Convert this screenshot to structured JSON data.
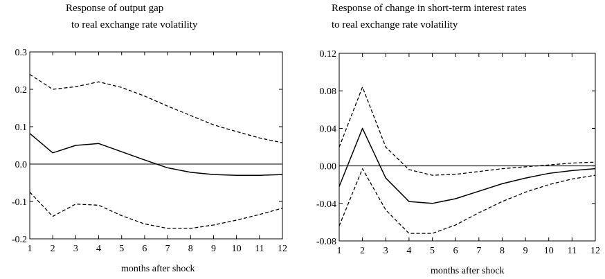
{
  "chart_data": [
    {
      "type": "line",
      "title_lines": [
        "Response of output gap",
        "to real exchange rate volatility"
      ],
      "xlabel": "months after shock",
      "ylabel": "",
      "x": [
        1,
        2,
        3,
        4,
        5,
        6,
        7,
        8,
        9,
        10,
        11,
        12
      ],
      "xlim": [
        1,
        12
      ],
      "ylim": [
        -0.2,
        0.3
      ],
      "yticks": [
        -0.2,
        -0.1,
        0.0,
        0.1,
        0.2,
        0.3
      ],
      "ytick_labels": [
        "-0.2",
        "-0.1",
        "0.0",
        "0.1",
        "0.2",
        "0.3"
      ],
      "grid": false,
      "zero_line": true,
      "series": [
        {
          "role": "point-estimate",
          "style": "solid",
          "values": [
            0.082,
            0.03,
            0.05,
            0.055,
            0.033,
            0.011,
            -0.01,
            -0.022,
            -0.028,
            -0.03,
            -0.03,
            -0.028
          ]
        },
        {
          "role": "upper-band",
          "style": "dashed",
          "values": [
            0.24,
            0.2,
            0.207,
            0.22,
            0.205,
            0.182,
            0.155,
            0.13,
            0.105,
            0.087,
            0.07,
            0.057
          ]
        },
        {
          "role": "lower-band",
          "style": "dashed",
          "values": [
            -0.075,
            -0.14,
            -0.107,
            -0.11,
            -0.138,
            -0.16,
            -0.172,
            -0.172,
            -0.163,
            -0.15,
            -0.135,
            -0.118
          ]
        }
      ]
    },
    {
      "type": "line",
      "title_lines": [
        "Response of change in short-term interest rates",
        "to real exchange rate volatility"
      ],
      "xlabel": "months after shock",
      "ylabel": "",
      "x": [
        1,
        2,
        3,
        4,
        5,
        6,
        7,
        8,
        9,
        10,
        11,
        12
      ],
      "xlim": [
        1,
        12
      ],
      "ylim": [
        -0.08,
        0.12
      ],
      "yticks": [
        -0.08,
        -0.04,
        0.0,
        0.04,
        0.08,
        0.12
      ],
      "ytick_labels": [
        "-0.08",
        "-0.04",
        "0.00",
        "0.04",
        "0.08",
        "0.12"
      ],
      "grid": false,
      "zero_line": true,
      "series": [
        {
          "role": "point-estimate",
          "style": "solid",
          "values": [
            -0.022,
            0.04,
            -0.013,
            -0.038,
            -0.04,
            -0.035,
            -0.027,
            -0.019,
            -0.013,
            -0.008,
            -0.005,
            -0.003
          ]
        },
        {
          "role": "upper-band",
          "style": "dashed",
          "values": [
            0.02,
            0.084,
            0.02,
            -0.004,
            -0.01,
            -0.009,
            -0.006,
            -0.003,
            -0.001,
            0.001,
            0.003,
            0.004
          ]
        },
        {
          "role": "lower-band",
          "style": "dashed",
          "values": [
            -0.064,
            -0.003,
            -0.047,
            -0.072,
            -0.072,
            -0.063,
            -0.05,
            -0.038,
            -0.028,
            -0.02,
            -0.014,
            -0.01
          ]
        }
      ]
    }
  ]
}
